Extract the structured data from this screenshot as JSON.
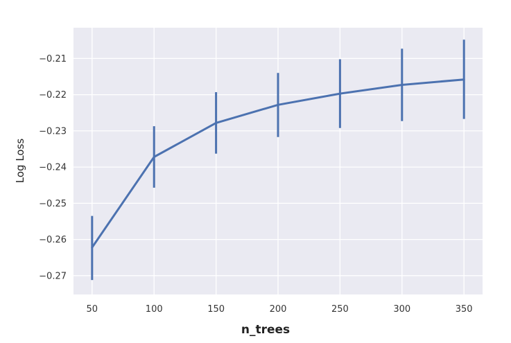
{
  "chart_data": {
    "type": "line",
    "title": "",
    "xlabel": "n_trees",
    "ylabel": "Log Loss",
    "x": [
      50,
      100,
      150,
      200,
      250,
      300,
      350
    ],
    "xticks": [
      50,
      100,
      150,
      200,
      250,
      300,
      350
    ],
    "yticks": [
      -0.27,
      -0.26,
      -0.25,
      -0.24,
      -0.23,
      -0.22,
      -0.21
    ],
    "ytick_labels": [
      "−0.27",
      "−0.26",
      "−0.25",
      "−0.24",
      "−0.23",
      "−0.22",
      "−0.21"
    ],
    "xlim": [
      35,
      365
    ],
    "ylim": [
      -0.2752,
      -0.2015
    ],
    "grid": true,
    "series": [
      {
        "values": [
          -0.2622,
          -0.2372,
          -0.2278,
          -0.2228,
          -0.2197,
          -0.2173,
          -0.2158
        ],
        "error_low": [
          -0.2712,
          -0.2457,
          -0.2363,
          -0.2317,
          -0.2292,
          -0.2273,
          -0.2267
        ],
        "error_high": [
          -0.2535,
          -0.2287,
          -0.2193,
          -0.214,
          -0.2102,
          -0.2073,
          -0.2048
        ]
      }
    ],
    "colors": {
      "series": "#4c72b0",
      "plot_bg": "#eaeaf2",
      "grid": "#ffffff"
    }
  }
}
